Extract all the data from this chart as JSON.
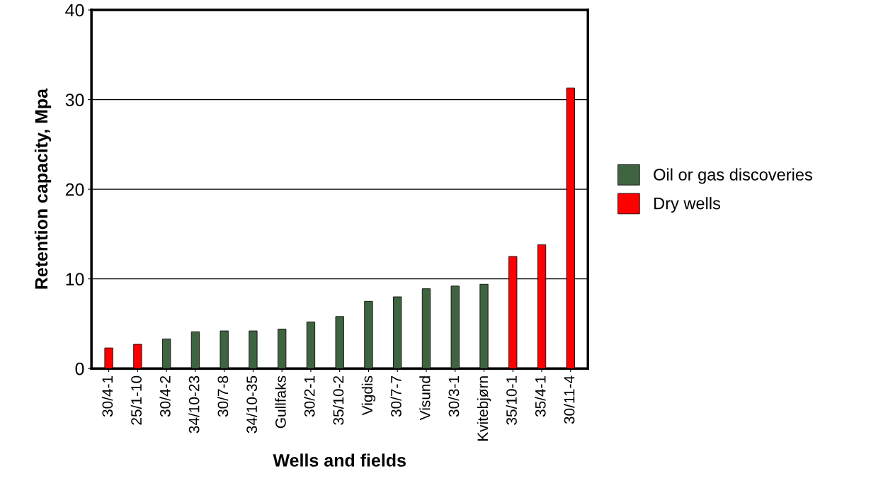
{
  "chart_data": {
    "type": "bar",
    "xlabel": "Wells and fields",
    "ylabel": "Retention capacity, Mpa",
    "categories": [
      "30/4-1",
      "25/1-10",
      "30/4-2",
      "34/10-23",
      "30/7-8",
      "34/10-35",
      "Gullfaks",
      "30/2-1",
      "35/10-2",
      "Vigdis",
      "30/7-7",
      "Visund",
      "30/3-1",
      "Kvitebjørn",
      "35/10-1",
      "35/4-1",
      "30/11-4"
    ],
    "series": [
      {
        "name": "Oil or gas discoveries",
        "color": "#3f6440",
        "values": [
          null,
          null,
          3.3,
          4.1,
          4.2,
          4.2,
          4.4,
          5.2,
          5.8,
          7.5,
          8.0,
          8.9,
          9.2,
          9.4,
          null,
          null,
          null
        ]
      },
      {
        "name": "Dry wells",
        "color": "#ff0000",
        "values": [
          2.3,
          2.7,
          null,
          null,
          null,
          null,
          null,
          null,
          null,
          null,
          null,
          null,
          null,
          null,
          12.5,
          13.8,
          31.3
        ]
      }
    ],
    "ylim": [
      0,
      40
    ],
    "yticks": [
      0,
      10,
      20,
      30,
      40
    ],
    "grid": "y",
    "legend": "right"
  }
}
